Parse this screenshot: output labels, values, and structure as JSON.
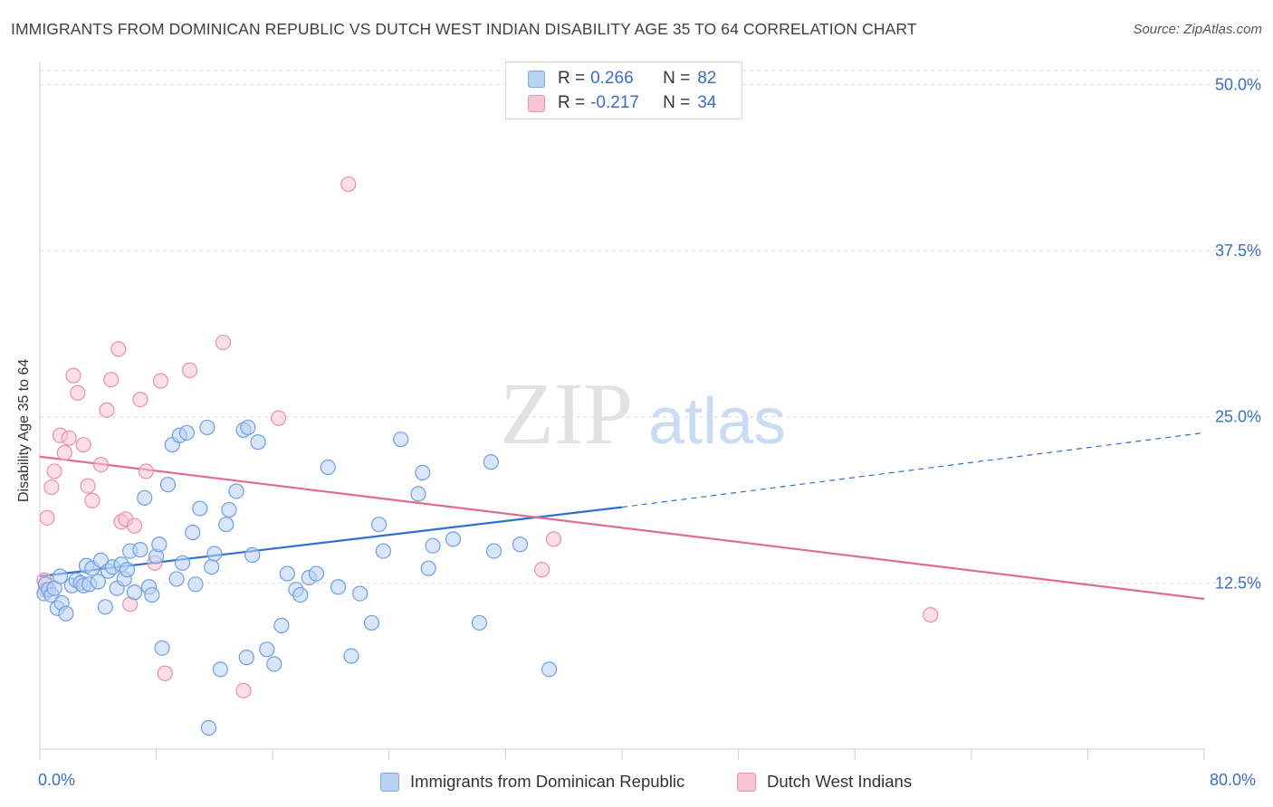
{
  "header": {
    "title": "IMMIGRANTS FROM DOMINICAN REPUBLIC VS DUTCH WEST INDIAN DISABILITY AGE 35 TO 64 CORRELATION CHART",
    "source": "Source: ZipAtlas.com"
  },
  "legend": {
    "r_label": "R =",
    "n_label": "N =",
    "series": [
      {
        "r": "0.266",
        "n": "82"
      },
      {
        "r": "-0.217",
        "n": "34"
      }
    ]
  },
  "watermark": {
    "zip": "ZIP",
    "atlas": "atlas"
  },
  "colors": {
    "blue_fill": "#b9d2f4",
    "blue_stroke": "#6f9fe0",
    "blue_line": "#2f6fcf",
    "pink_fill": "#f8c3d3",
    "pink_stroke": "#e891ab",
    "pink_line": "#e06b93",
    "tick_text": "#3a6fc4",
    "grid": "#dcdcdc"
  },
  "chart_data": {
    "type": "scatter",
    "ylabel": "Disability Age 35 to 64",
    "xlim": [
      0,
      80
    ],
    "ylim": [
      0,
      52
    ],
    "x_tick_labels": [
      "0.0%",
      "80.0%"
    ],
    "y_ticks": [
      12.5,
      25.0,
      37.5,
      50.0
    ],
    "y_tick_labels": [
      "12.5%",
      "25.0%",
      "37.5%",
      "50.0%"
    ],
    "grid": true,
    "legend_position": "top-center",
    "series": [
      {
        "name": "Immigrants from Dominican Republic",
        "r": 0.266,
        "n": 82,
        "trend": {
          "x0": 0,
          "y0": 13.0,
          "x1": 40,
          "y1": 18.2,
          "x_extended": 80,
          "y_extended": 23.8
        },
        "points": [
          [
            0.3,
            11.7
          ],
          [
            0.4,
            12.4
          ],
          [
            0.6,
            12.0
          ],
          [
            0.8,
            11.6
          ],
          [
            1.0,
            12.1
          ],
          [
            1.2,
            10.6
          ],
          [
            1.4,
            13.0
          ],
          [
            1.5,
            11.0
          ],
          [
            1.8,
            10.2
          ],
          [
            2.2,
            12.3
          ],
          [
            2.5,
            12.7
          ],
          [
            2.8,
            12.5
          ],
          [
            3.0,
            12.3
          ],
          [
            3.2,
            13.8
          ],
          [
            3.4,
            12.4
          ],
          [
            3.6,
            13.6
          ],
          [
            4.0,
            12.6
          ],
          [
            4.2,
            14.2
          ],
          [
            4.5,
            10.7
          ],
          [
            4.7,
            13.4
          ],
          [
            5.0,
            13.7
          ],
          [
            5.3,
            12.1
          ],
          [
            5.6,
            13.9
          ],
          [
            5.8,
            12.8
          ],
          [
            6.0,
            13.5
          ],
          [
            6.2,
            14.9
          ],
          [
            6.5,
            11.8
          ],
          [
            6.9,
            15.0
          ],
          [
            7.2,
            18.9
          ],
          [
            7.5,
            12.2
          ],
          [
            7.7,
            11.6
          ],
          [
            8.0,
            14.5
          ],
          [
            8.2,
            15.4
          ],
          [
            8.4,
            7.6
          ],
          [
            8.8,
            19.9
          ],
          [
            9.1,
            22.9
          ],
          [
            9.4,
            12.8
          ],
          [
            9.6,
            23.6
          ],
          [
            9.8,
            14.0
          ],
          [
            10.1,
            23.8
          ],
          [
            10.5,
            16.3
          ],
          [
            10.7,
            12.4
          ],
          [
            11.0,
            18.1
          ],
          [
            11.5,
            24.2
          ],
          [
            11.8,
            13.7
          ],
          [
            12.0,
            14.7
          ],
          [
            12.4,
            6.0
          ],
          [
            12.8,
            16.9
          ],
          [
            13.0,
            18.0
          ],
          [
            13.5,
            19.4
          ],
          [
            14.0,
            24.0
          ],
          [
            14.3,
            24.2
          ],
          [
            14.6,
            14.6
          ],
          [
            15.0,
            23.1
          ],
          [
            15.6,
            7.5
          ],
          [
            16.1,
            6.4
          ],
          [
            16.6,
            9.3
          ],
          [
            17.0,
            13.2
          ],
          [
            17.6,
            12.0
          ],
          [
            17.9,
            11.6
          ],
          [
            18.5,
            12.9
          ],
          [
            19.0,
            13.2
          ],
          [
            19.8,
            21.2
          ],
          [
            20.5,
            12.2
          ],
          [
            21.4,
            7.0
          ],
          [
            22.0,
            11.7
          ],
          [
            22.8,
            9.5
          ],
          [
            23.3,
            16.9
          ],
          [
            23.6,
            14.9
          ],
          [
            24.8,
            23.3
          ],
          [
            26.0,
            19.2
          ],
          [
            26.3,
            20.8
          ],
          [
            26.7,
            13.6
          ],
          [
            27.0,
            15.3
          ],
          [
            28.4,
            15.8
          ],
          [
            30.2,
            9.5
          ],
          [
            31.0,
            21.6
          ],
          [
            31.2,
            14.9
          ],
          [
            33.0,
            15.4
          ],
          [
            35.0,
            6.0
          ],
          [
            14.2,
            6.9
          ],
          [
            11.6,
            1.6
          ]
        ]
      },
      {
        "name": "Dutch West Indians",
        "r": -0.217,
        "n": 34,
        "trend": {
          "x0": 0,
          "y0": 22.0,
          "x1": 80,
          "y1": 11.3
        },
        "points": [
          [
            0.3,
            12.7
          ],
          [
            0.4,
            12.0
          ],
          [
            0.5,
            17.4
          ],
          [
            0.8,
            19.7
          ],
          [
            1.0,
            20.9
          ],
          [
            1.4,
            23.6
          ],
          [
            1.7,
            22.3
          ],
          [
            2.0,
            23.4
          ],
          [
            2.3,
            28.1
          ],
          [
            2.6,
            26.8
          ],
          [
            3.0,
            22.9
          ],
          [
            3.3,
            19.8
          ],
          [
            3.6,
            18.7
          ],
          [
            4.2,
            21.4
          ],
          [
            4.6,
            25.5
          ],
          [
            4.9,
            27.8
          ],
          [
            5.4,
            30.1
          ],
          [
            5.6,
            17.1
          ],
          [
            5.9,
            17.3
          ],
          [
            6.2,
            10.9
          ],
          [
            6.5,
            16.8
          ],
          [
            6.9,
            26.3
          ],
          [
            7.3,
            20.9
          ],
          [
            7.9,
            14.0
          ],
          [
            8.3,
            27.7
          ],
          [
            8.6,
            5.7
          ],
          [
            10.3,
            28.5
          ],
          [
            12.6,
            30.6
          ],
          [
            14.0,
            4.4
          ],
          [
            16.4,
            24.9
          ],
          [
            21.2,
            42.5
          ],
          [
            34.5,
            13.5
          ],
          [
            35.3,
            15.8
          ],
          [
            61.2,
            10.1
          ]
        ]
      }
    ]
  }
}
